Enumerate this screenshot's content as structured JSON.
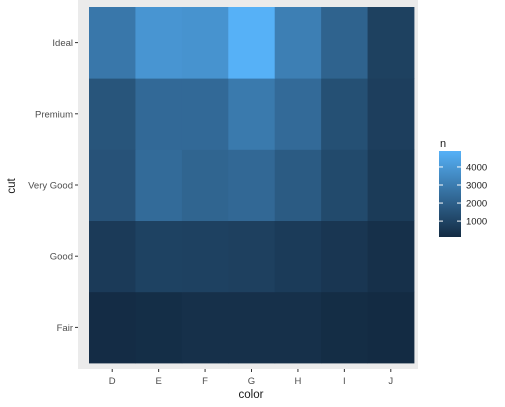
{
  "chart_data": {
    "type": "heatmap",
    "title": "",
    "xlabel": "color",
    "ylabel": "cut",
    "x_categories": [
      "D",
      "E",
      "F",
      "G",
      "H",
      "I",
      "J"
    ],
    "y_categories": [
      "Fair",
      "Good",
      "Very Good",
      "Premium",
      "Ideal"
    ],
    "values": [
      [
        163,
        224,
        312,
        314,
        303,
        175,
        119
      ],
      [
        662,
        933,
        909,
        871,
        702,
        522,
        307
      ],
      [
        1513,
        2400,
        2164,
        2299,
        1824,
        1204,
        678
      ],
      [
        1603,
        2337,
        2331,
        2924,
        2360,
        1428,
        808
      ],
      [
        2834,
        3903,
        3826,
        4884,
        3115,
        2093,
        896
      ]
    ],
    "legend": {
      "title": "n",
      "breaks": [
        1000,
        2000,
        3000,
        4000
      ],
      "break_labels": [
        "1000",
        "2000",
        "3000",
        "4000"
      ],
      "range": [
        119,
        4884
      ],
      "low_color": "#132B43",
      "high_color": "#56B1F7",
      "placement": "right"
    },
    "panel_background": "#EBEBEB",
    "grid": false
  }
}
